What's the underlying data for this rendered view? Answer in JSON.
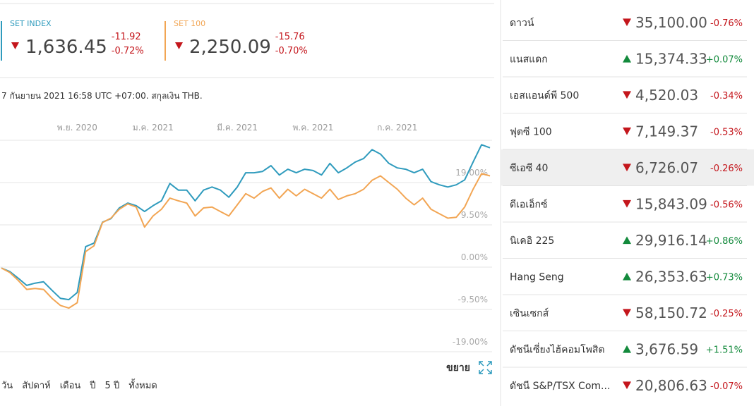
{
  "header": {
    "quotes": [
      {
        "name": "SET INDEX",
        "color": "#2f9bbd",
        "direction": "down",
        "value": "1,636.45",
        "change": "-11.92",
        "change_pct": "-0.72%"
      },
      {
        "name": "SET 100",
        "color": "#f2a553",
        "direction": "down",
        "value": "2,250.09",
        "change": "-15.76",
        "change_pct": "-0.70%"
      }
    ]
  },
  "timestamp": "7 กันยายน 2021 16:58 UTC +07:00. สกุลเงิน THB.",
  "chart_data": {
    "type": "line",
    "categories": [
      null,
      null,
      null,
      null,
      null,
      null,
      null,
      null,
      null,
      "พ.ย. 2020",
      null,
      null,
      null,
      null,
      null,
      null,
      null,
      null,
      "ม.ค. 2021",
      null,
      null,
      null,
      null,
      null,
      null,
      null,
      null,
      null,
      "มี.ค. 2021",
      null,
      null,
      null,
      null,
      null,
      null,
      null,
      null,
      "พ.ค. 2021",
      null,
      null,
      null,
      null,
      null,
      null,
      null,
      null,
      null,
      "ก.ค. 2021",
      null,
      null,
      null,
      null,
      null,
      null,
      null,
      null,
      null,
      null,
      null
    ],
    "series": [
      {
        "name": "SET INDEX",
        "color": "#2f9bbd",
        "values": [
          -0.2,
          -1,
          -2.5,
          -4.1,
          -3.6,
          -3.3,
          -5.2,
          -7,
          -7.3,
          -5.7,
          4.6,
          5.4,
          10.1,
          10.9,
          13.3,
          14.4,
          13.8,
          12.5,
          13.8,
          14.9,
          18.8,
          17.3,
          17.3,
          14.9,
          17.3,
          18,
          17.3,
          15.7,
          18,
          21.2,
          21.2,
          21.5,
          22.8,
          20.7,
          22,
          21.2,
          22,
          21.7,
          20.7,
          23.3,
          21.2,
          22.3,
          23.6,
          24.4,
          26.4,
          25.4,
          23.3,
          22.3,
          22,
          21.2,
          22,
          19.2,
          18.5,
          18,
          18.5,
          19.6,
          23.6,
          27.5,
          26.8
        ]
      },
      {
        "name": "SET 100",
        "color": "#f2a553",
        "values": [
          -0.2,
          -1.2,
          -3,
          -5,
          -4.8,
          -5,
          -7,
          -8.6,
          -9.2,
          -8,
          3.5,
          4.8,
          10,
          11,
          13,
          14.2,
          13.5,
          9,
          11.5,
          13,
          15.5,
          14.9,
          14.4,
          11.5,
          13.3,
          13.5,
          12.5,
          11.5,
          14,
          16.5,
          15.5,
          17,
          17.8,
          15.5,
          17.5,
          16,
          17.5,
          16.5,
          15.5,
          17.5,
          15.2,
          16,
          16.5,
          17.5,
          19.5,
          20.5,
          19,
          17.5,
          15.5,
          14,
          15.5,
          13,
          12,
          11,
          11.2,
          13.5,
          17.5,
          21,
          20.5
        ]
      }
    ],
    "ylim": [
      -19,
      28.5
    ],
    "yticks": [
      {
        "value": 19,
        "label": "19.00%"
      },
      {
        "value": 9.5,
        "label": "9.50%"
      },
      {
        "value": 0,
        "label": "0.00%"
      },
      {
        "value": -9.5,
        "label": "-9.50%"
      },
      {
        "value": -19,
        "label": "-19.00%"
      }
    ],
    "grid": true
  },
  "expand_label": "ขยาย",
  "range_buttons": [
    "วัน",
    "สัปดาห์",
    "เดือน",
    "ปี",
    "5 ปี",
    "ทั้งหมด"
  ],
  "indices": [
    {
      "name": "ดาวน์",
      "direction": "down",
      "value": "35,100.00",
      "change_pct": "-0.76%"
    },
    {
      "name": "แนสแดก",
      "direction": "up",
      "value": "15,374.33",
      "change_pct": "+0.07%"
    },
    {
      "name": "เอสแอนด์พี 500",
      "direction": "down",
      "value": "4,520.03",
      "change_pct": "-0.34%"
    },
    {
      "name": "ฟุตซี 100",
      "direction": "down",
      "value": "7,149.37",
      "change_pct": "-0.53%"
    },
    {
      "name": "ซีเอซี 40",
      "direction": "down",
      "value": "6,726.07",
      "change_pct": "-0.26%"
    },
    {
      "name": "ดีเอเอ็กซ์",
      "direction": "down",
      "value": "15,843.09",
      "change_pct": "-0.56%"
    },
    {
      "name": "นิเคอิ 225",
      "direction": "up",
      "value": "29,916.14",
      "change_pct": "+0.86%"
    },
    {
      "name": "Hang Seng",
      "direction": "up",
      "value": "26,353.63",
      "change_pct": "+0.73%"
    },
    {
      "name": "เซินเซกส์",
      "direction": "down",
      "value": "58,150.72",
      "change_pct": "-0.25%"
    },
    {
      "name": "ดัชนีเซี่ยงไฮ้คอมโพสิต",
      "direction": "up",
      "value": "3,676.59",
      "change_pct": "+1.51%"
    },
    {
      "name": "ดัชนี S&P/TSX Com...",
      "direction": "down",
      "value": "20,806.63",
      "change_pct": "-0.07%"
    }
  ]
}
